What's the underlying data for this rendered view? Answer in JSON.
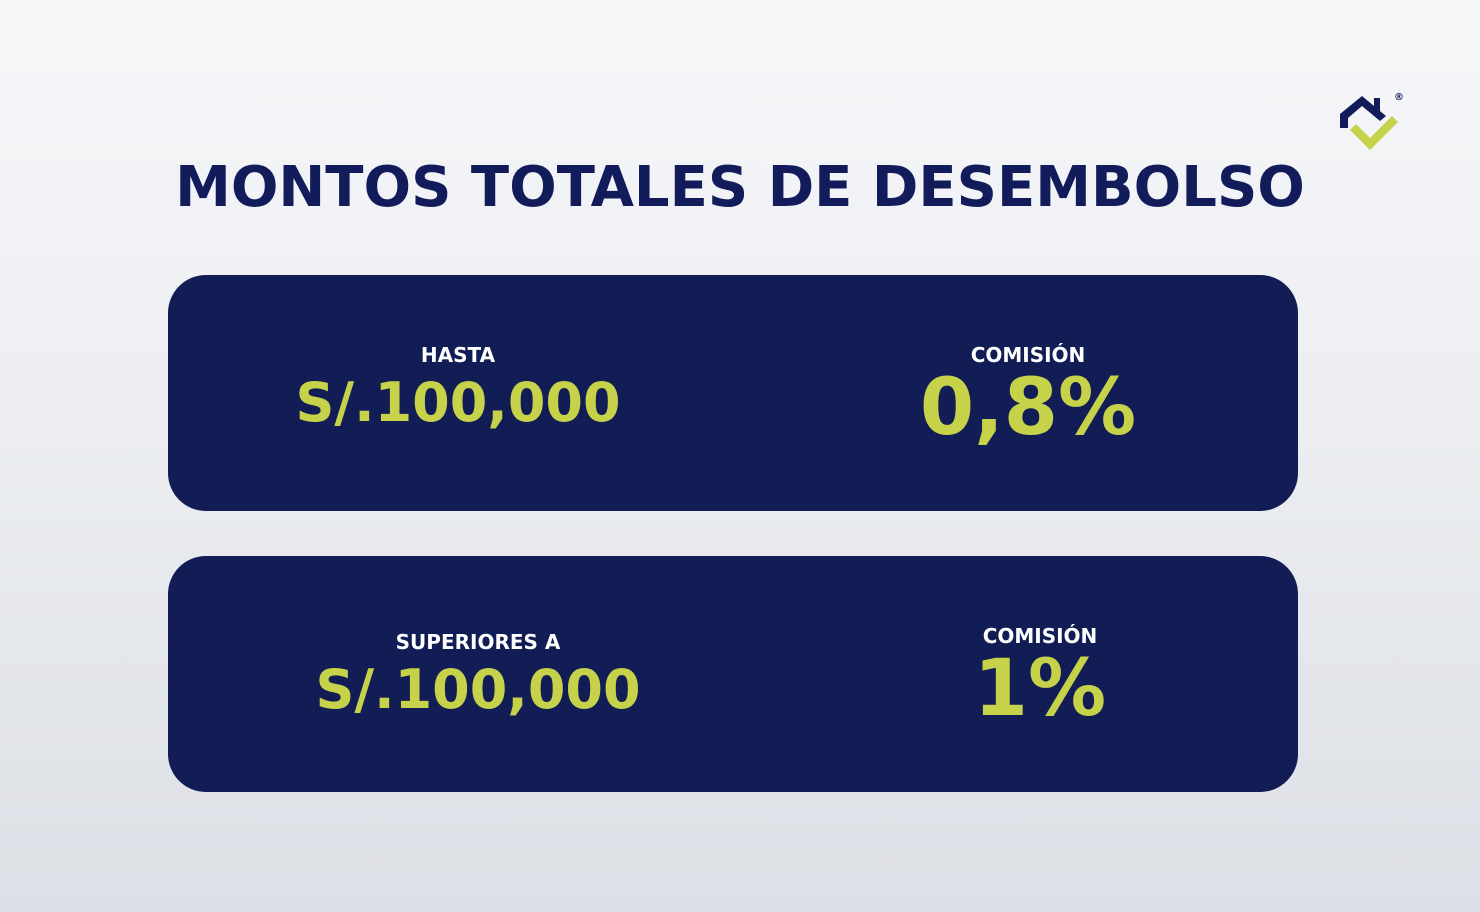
{
  "title": "MONTOS TOTALES DE DESEMBOLSO",
  "logo": {
    "icon": "house-check-logo-icon",
    "registered_mark": "®"
  },
  "cards": [
    {
      "left_label": "HASTA",
      "left_value": "S/.100,000",
      "right_label": "COMISIÓN",
      "right_value": "0,8%"
    },
    {
      "left_label": "SUPERIORES A",
      "left_value": "S/.100,000",
      "right_label": "COMISIÓN",
      "right_value": "1%"
    }
  ],
  "colors": {
    "navy": "#121c55",
    "accent": "#c6d24a",
    "white": "#ffffff"
  }
}
